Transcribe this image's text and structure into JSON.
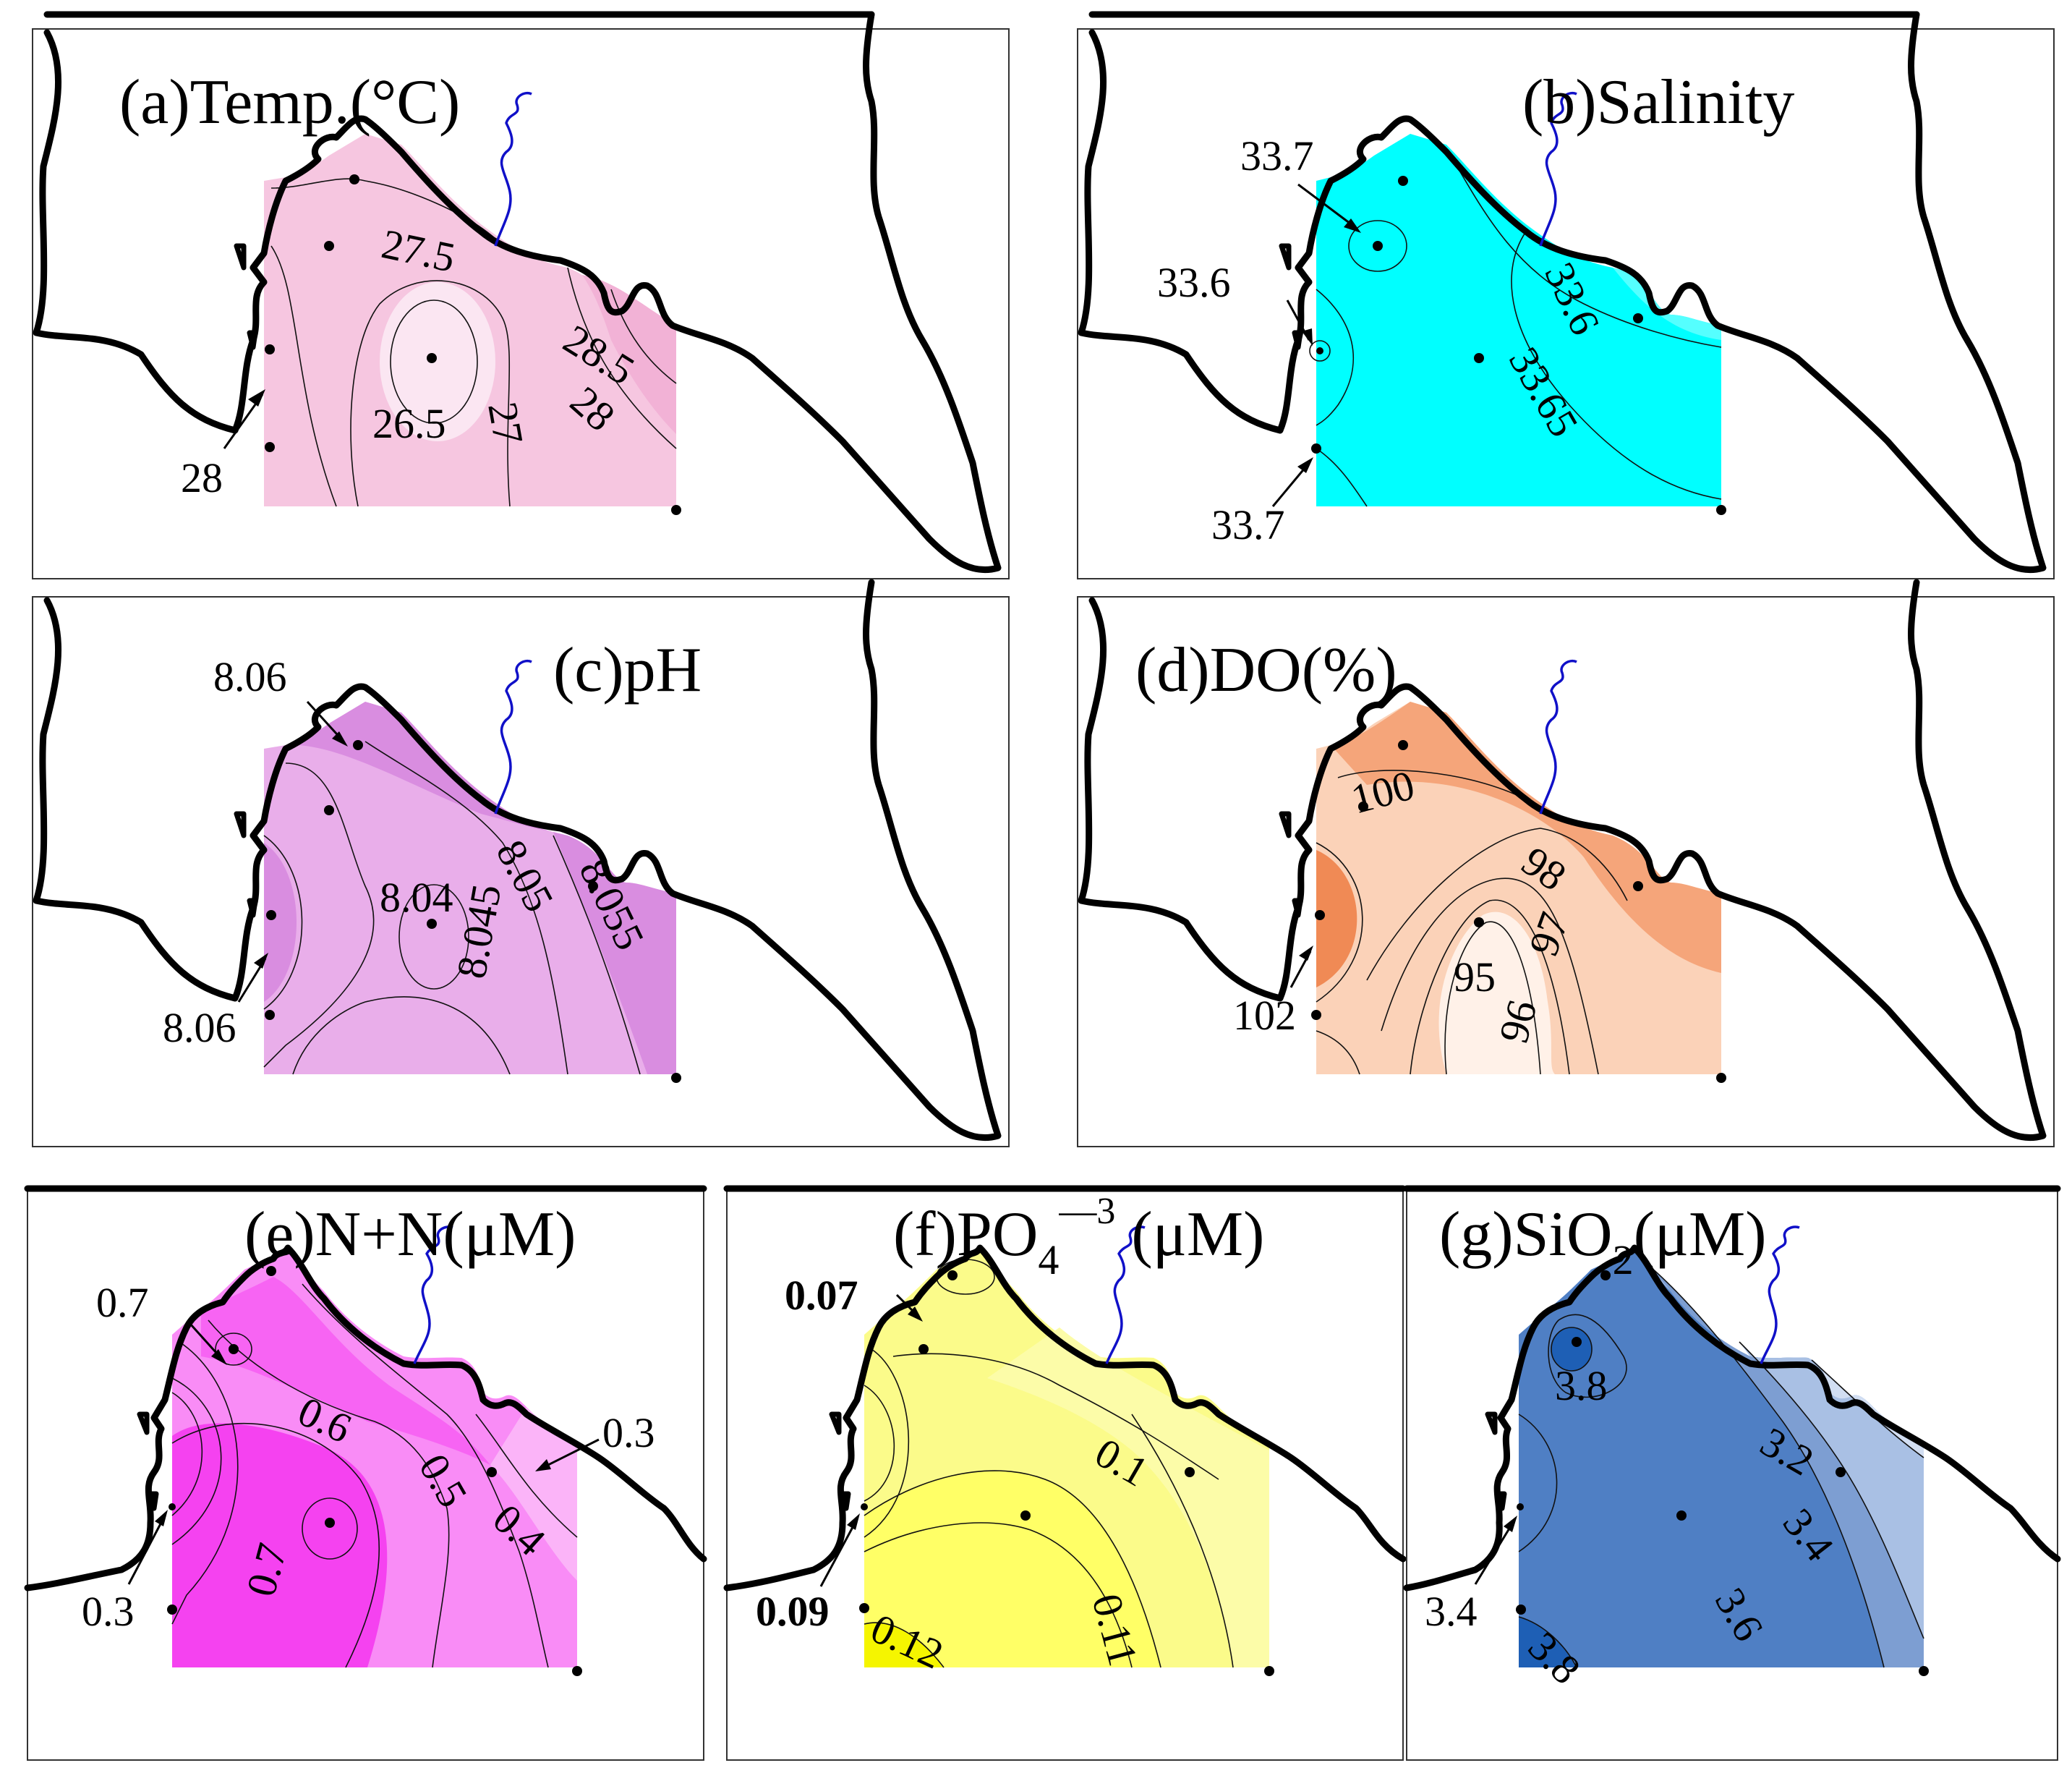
{
  "figure": {
    "panels": [
      {
        "id": "a",
        "title": "(a)Temp.(°C)",
        "fill_color": "#f6c6e0",
        "contour_labels": [
          "27.5",
          "28.5",
          "28",
          "26.5",
          "27"
        ],
        "annotations": [
          "28"
        ]
      },
      {
        "id": "b",
        "title": "(b)Salinity",
        "fill_color": "#00ffff",
        "contour_labels": [
          "33.6",
          "33.65"
        ],
        "annotations": [
          "33.7",
          "33.6",
          "33.7"
        ]
      },
      {
        "id": "c",
        "title": "(c)pH",
        "fill_color": "#d98de0",
        "contour_labels": [
          "8.04",
          "8.05",
          "8.055",
          "8.045"
        ],
        "annotations": [
          "8.06",
          "8.06"
        ]
      },
      {
        "id": "d",
        "title": "(d)DO(%)",
        "fill_color": "#f5a57a",
        "contour_labels": [
          "100",
          "98",
          "97",
          "95",
          "96"
        ],
        "annotations": [
          "102"
        ]
      },
      {
        "id": "e",
        "title": "(e)N+N(μM)",
        "fill_color": "#f542f0",
        "contour_labels": [
          "0.6",
          "0.5",
          "0.4",
          "0.7"
        ],
        "annotations": [
          "0.7",
          "0.3",
          "0.3"
        ]
      },
      {
        "id": "f",
        "title_main": "(f)PO",
        "title_sub": "4",
        "title_sup": "—3",
        "title_tail": " (μM)",
        "fill_color": "#ffff66",
        "contour_labels": [
          "0.1",
          "0.12",
          "0.11"
        ],
        "annotations": [
          "0.07",
          "0.09"
        ]
      },
      {
        "id": "g",
        "title_main": "(g)SiO",
        "title_sub": "2",
        "title_tail": "(μM)",
        "fill_color": "#4f7fc4",
        "contour_labels": [
          "3.8",
          "3.2",
          "3.4",
          "3.6",
          "3.8"
        ],
        "annotations": [
          "3.4"
        ]
      }
    ]
  }
}
